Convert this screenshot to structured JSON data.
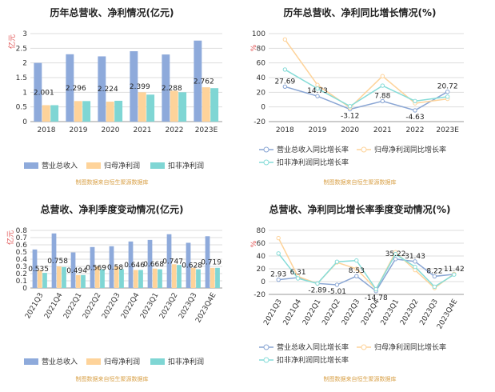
{
  "colors": {
    "revenue": "#8eaadb",
    "net_profit": "#fed39a",
    "deducted_profit": "#7fd6d4",
    "rev_growth_line": "#8aa6d4",
    "net_growth_line": "#fed39a",
    "ded_growth_line": "#86dcd8",
    "grid": "#dddddd",
    "axis": "#999999"
  },
  "chart_data": [
    {
      "id": "c1",
      "type": "bar",
      "title": "历年总营收、净利情况(亿元)",
      "ylabel": "亿元",
      "categories": [
        "2018",
        "2019",
        "2020",
        "2021",
        "2022",
        "2023E"
      ],
      "yticks": [
        "0",
        "0.5",
        "1",
        "1.5",
        "2",
        "2.5",
        "3"
      ],
      "ylim": [
        0,
        3
      ],
      "series": [
        {
          "name": "营业总收入",
          "values": [
            2.001,
            2.296,
            2.224,
            2.399,
            2.288,
            2.762
          ]
        },
        {
          "name": "归母净利润",
          "values": [
            0.56,
            0.7,
            0.68,
            1.0,
            1.05,
            1.17
          ]
        },
        {
          "name": "扣非净利润",
          "values": [
            0.56,
            0.7,
            0.71,
            0.92,
            1.0,
            1.14
          ]
        }
      ],
      "data_labels": [
        "2.001",
        "2.296",
        "2.224",
        "2.399",
        "2.288",
        "2.762"
      ],
      "legend_position": "bottom",
      "source": "制图数据来自恒生聚源数据库"
    },
    {
      "id": "c2",
      "type": "line",
      "title": "历年总营收、净利同比增长情况(%)",
      "ylabel": "%",
      "categories": [
        "2018",
        "2019",
        "2020",
        "2021",
        "2022",
        "2023E"
      ],
      "yticks": [
        "-20",
        "0",
        "20",
        "40",
        "60",
        "80",
        "100"
      ],
      "ylim": [
        -20,
        100
      ],
      "series": [
        {
          "name": "营业总收入同比增长率",
          "values": [
            27.69,
            14.73,
            -3.12,
            7.88,
            -4.63,
            20.72
          ]
        },
        {
          "name": "归母净利润同比增长率",
          "values": [
            92,
            30,
            -1,
            42,
            5,
            11
          ]
        },
        {
          "name": "扣非净利润同比增长率",
          "values": [
            51,
            25,
            1,
            29,
            8,
            14
          ]
        }
      ],
      "data_labels": [
        "27.69",
        "14.73",
        "-3.12",
        "7.88",
        "-4.63",
        "20.72"
      ],
      "legend_position": "bottom",
      "source": "制图数据来自恒生聚源数据库"
    },
    {
      "id": "c3",
      "type": "bar",
      "title": "总营收、净利季度变动情况(亿元)",
      "ylabel": "亿元",
      "categories": [
        "2021Q3",
        "2021Q4",
        "2022Q1",
        "2022Q2",
        "2022Q3",
        "2022Q4",
        "2023Q1",
        "2023Q2",
        "2023Q3",
        "2023Q4E"
      ],
      "yticks": [
        "0",
        "0.1",
        "0.2",
        "0.3",
        "0.4",
        "0.5",
        "0.6",
        "0.7",
        "0.8"
      ],
      "ylim": [
        0,
        0.8
      ],
      "series": [
        {
          "name": "营业总收入",
          "values": [
            0.535,
            0.758,
            0.494,
            0.569,
            0.58,
            0.646,
            0.668,
            0.747,
            0.628,
            0.719
          ]
        },
        {
          "name": "归母净利润",
          "values": [
            0.25,
            0.3,
            0.18,
            0.3,
            0.3,
            0.25,
            0.27,
            0.33,
            0.28,
            0.28
          ]
        },
        {
          "name": "扣非净利润",
          "values": [
            0.21,
            0.29,
            0.18,
            0.26,
            0.26,
            0.25,
            0.26,
            0.32,
            0.26,
            0.28
          ]
        }
      ],
      "data_labels": [
        "0.535",
        "0.758",
        "0.494",
        "0.569",
        "0.58",
        "0.646",
        "0.668",
        "0.747",
        "0.628",
        "0.719"
      ],
      "legend_position": "bottom",
      "source": "制图数据来自恒生聚源数据库"
    },
    {
      "id": "c4",
      "type": "line",
      "title": "总营收、净利同比增长率季度变动情况(%)",
      "ylabel": "%",
      "categories": [
        "2021Q3",
        "2021Q4",
        "2022Q1",
        "2022Q2",
        "2022Q3",
        "2022Q4",
        "2023Q1",
        "2023Q2",
        "2023Q3",
        "2023Q4E"
      ],
      "yticks": [
        "-20",
        "0",
        "20",
        "40",
        "60",
        "80"
      ],
      "ylim": [
        -20,
        80
      ],
      "series": [
        {
          "name": "营业总收入同比增长率",
          "values": [
            2.93,
            6.31,
            -2.89,
            -5.01,
            8.53,
            -14.78,
            35.22,
            31.43,
            8.22,
            11.42
          ]
        },
        {
          "name": "归母净利润同比增长率",
          "values": [
            68,
            8,
            -3,
            30,
            20,
            -12,
            46,
            18,
            -10,
            12
          ]
        },
        {
          "name": "扣非净利润同比增长率",
          "values": [
            44,
            5,
            -3,
            31,
            33,
            -12,
            43,
            23,
            -8,
            11
          ]
        }
      ],
      "data_labels": [
        "2.93",
        "6.31",
        "-2.89",
        "-5.01",
        "8.53",
        "-14.78",
        "35.22",
        "31.43",
        "8.22",
        "11.42"
      ],
      "legend_position": "bottom",
      "source": "制图数据来自恒生聚源数据库"
    }
  ]
}
